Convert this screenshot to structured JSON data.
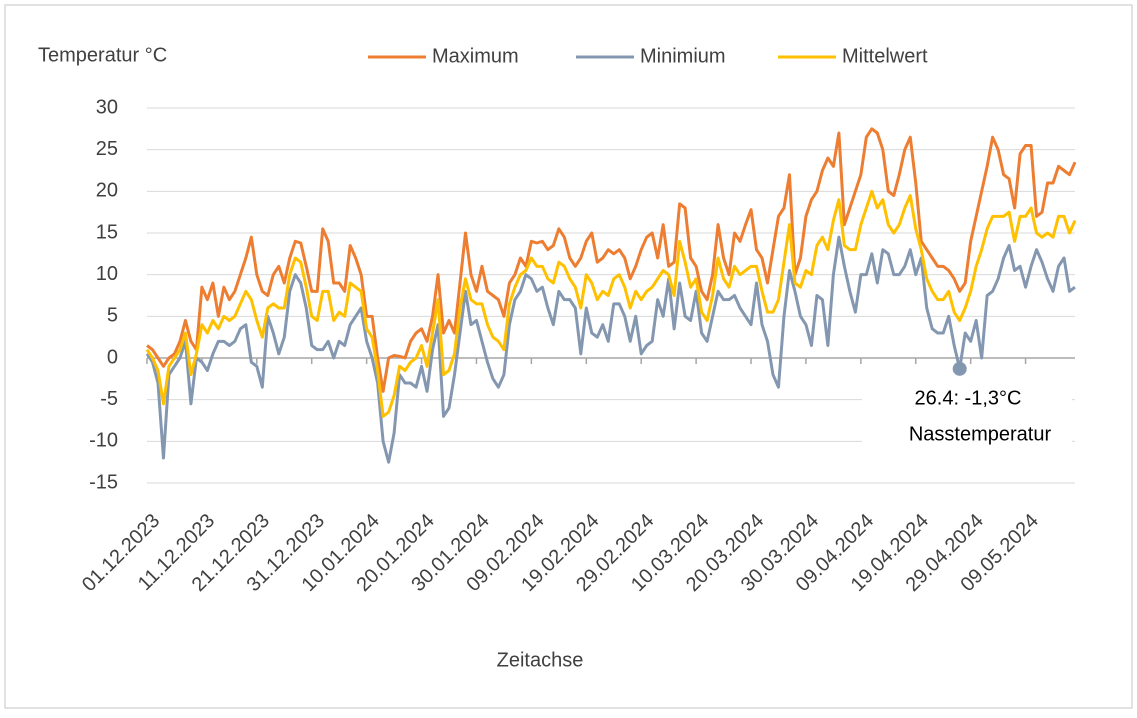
{
  "chart_data": {
    "type": "line",
    "title": "Temperatur °C",
    "x_label": "Zeitachse",
    "categories": [
      "01.12.2023",
      null,
      null,
      null,
      null,
      null,
      null,
      null,
      null,
      null,
      "11.12.2023",
      null,
      null,
      null,
      null,
      null,
      null,
      null,
      null,
      null,
      "21.12.2023",
      null,
      null,
      null,
      null,
      null,
      null,
      null,
      null,
      null,
      "31.12.2023",
      null,
      null,
      null,
      null,
      null,
      null,
      null,
      null,
      null,
      "10.01.2024",
      null,
      null,
      null,
      null,
      null,
      null,
      null,
      null,
      null,
      "20.01.2024",
      null,
      null,
      null,
      null,
      null,
      null,
      null,
      null,
      null,
      "30.01.2024",
      null,
      null,
      null,
      null,
      null,
      null,
      null,
      null,
      null,
      "09.02.2024",
      null,
      null,
      null,
      null,
      null,
      null,
      null,
      null,
      null,
      "19.02.2024",
      null,
      null,
      null,
      null,
      null,
      null,
      null,
      null,
      null,
      "29.02.2024",
      null,
      null,
      null,
      null,
      null,
      null,
      null,
      null,
      null,
      "10.03.2024",
      null,
      null,
      null,
      null,
      null,
      null,
      null,
      null,
      null,
      "20.03.2024",
      null,
      null,
      null,
      null,
      null,
      null,
      null,
      null,
      null,
      "30.03.2024",
      null,
      null,
      null,
      null,
      null,
      null,
      null,
      null,
      null,
      "09.04.2024",
      null,
      null,
      null,
      null,
      null,
      null,
      null,
      null,
      null,
      "19.04.2024",
      null,
      null,
      null,
      null,
      null,
      null,
      null,
      null,
      null,
      "29.04.2024",
      null,
      null,
      null,
      null,
      null,
      null,
      null,
      null,
      null,
      "09.05.2024",
      null,
      null,
      null,
      null,
      null,
      null,
      null,
      null,
      null
    ],
    "series": [
      {
        "name": "Maximum",
        "color": "#ed7d31",
        "values": [
          1.5,
          1,
          0,
          -1,
          0,
          0.5,
          2,
          4.5,
          2,
          1,
          8.5,
          7,
          9,
          5,
          8.5,
          7,
          8,
          10,
          12,
          14.5,
          10,
          8,
          7.5,
          10,
          11,
          9,
          12,
          14,
          13.8,
          11,
          8,
          8,
          15.5,
          14,
          9,
          9,
          8,
          13.5,
          12,
          10,
          5,
          5,
          0,
          -4,
          0,
          0.3,
          0.2,
          0,
          2,
          3,
          3.5,
          2,
          5,
          10,
          3,
          4.5,
          3,
          9,
          15,
          10,
          8,
          11,
          8,
          7.5,
          7,
          5,
          9,
          10,
          12,
          11,
          14,
          13.8,
          14,
          13,
          13.5,
          15.5,
          14.5,
          12,
          11,
          12,
          14,
          15,
          11.5,
          12,
          13,
          12.5,
          13,
          12,
          9.5,
          11,
          13,
          14.5,
          15,
          12,
          16,
          11,
          11.5,
          18.5,
          18,
          12,
          11,
          8,
          7,
          10,
          16,
          12,
          10,
          15,
          14,
          16,
          17.8,
          13,
          12,
          9,
          13,
          17,
          18,
          22,
          10,
          12,
          17,
          19,
          20,
          22.5,
          24,
          23,
          27,
          16,
          18,
          20,
          22,
          26.5,
          27.5,
          27,
          25,
          20,
          19.5,
          22,
          25,
          26.5,
          21,
          14,
          13,
          12,
          11,
          11,
          10.5,
          9.5,
          8,
          9,
          14,
          17,
          20,
          23,
          26.5,
          25,
          22,
          21.5,
          18,
          24.5,
          25.5,
          25.5,
          17,
          17.5,
          21,
          21,
          23,
          22.5,
          22,
          23.5
        ]
      },
      {
        "name": "Minimium",
        "color": "#8497b0",
        "values": [
          0.5,
          -0.5,
          -3,
          -12,
          -2,
          -1,
          0,
          2,
          -5.5,
          0,
          -0.5,
          -1.5,
          0.5,
          2,
          2,
          1.5,
          2,
          3.5,
          4,
          -0.5,
          -1,
          -3.5,
          5,
          3,
          0.5,
          2.5,
          8,
          10,
          9,
          6,
          1.5,
          1,
          1,
          2,
          0,
          2,
          1.5,
          4,
          5,
          6,
          2,
          0,
          -3,
          -10,
          -12.5,
          -9,
          -2,
          -3,
          -3,
          -3.5,
          -1,
          -4,
          1,
          4,
          -7,
          -6,
          -2,
          3,
          8,
          4,
          4.5,
          2,
          -0.5,
          -2.5,
          -3.5,
          -2,
          4,
          7,
          8,
          10,
          9.5,
          8,
          8.5,
          6,
          4,
          8,
          7,
          7,
          6,
          0.5,
          6,
          3,
          2.5,
          4,
          2,
          6.5,
          6.5,
          5,
          2,
          5,
          0.5,
          1.5,
          2,
          7,
          5,
          9.5,
          3.5,
          9,
          5,
          4.5,
          8,
          3,
          2,
          5,
          8,
          7,
          7,
          7.5,
          6,
          5,
          4,
          9,
          4,
          2,
          -2,
          -3.5,
          5,
          10.5,
          8,
          5,
          4,
          1.5,
          7.5,
          7,
          1.5,
          10,
          14.5,
          11,
          8,
          5.5,
          10,
          10,
          12.5,
          9,
          13,
          12.5,
          10,
          10,
          11,
          13,
          10,
          12,
          6,
          3.5,
          3,
          3,
          5,
          1.5,
          -1.3,
          3,
          2,
          4.5,
          0,
          7.5,
          8,
          9.5,
          12,
          13.5,
          10.5,
          11,
          8.5,
          11,
          13,
          11.5,
          9.5,
          8,
          11,
          12,
          8,
          8.5
        ]
      },
      {
        "name": "Mittelwert",
        "color": "#ffc000",
        "values": [
          1,
          0,
          -1.5,
          -5.5,
          -1,
          0,
          1,
          3,
          -2,
          0.5,
          4,
          3,
          4.5,
          3.5,
          5,
          4.5,
          5,
          6.5,
          8,
          7,
          4.5,
          2.5,
          6,
          6.5,
          6,
          6,
          10,
          12,
          11.5,
          8.5,
          5,
          4.5,
          8,
          8,
          4.5,
          5.5,
          5,
          9,
          8.5,
          8,
          3.5,
          2.5,
          -1.5,
          -7,
          -6.5,
          -4.5,
          -1,
          -1.5,
          -0.5,
          0,
          1.5,
          -1,
          3,
          7,
          -2,
          -1.5,
          0.5,
          6,
          9.5,
          7,
          6.5,
          6.5,
          4,
          2.5,
          2,
          1,
          6.5,
          8.5,
          10,
          10.5,
          12,
          11,
          11,
          9.5,
          9,
          11.5,
          11,
          9.5,
          8.5,
          6,
          10,
          9,
          7,
          8,
          7.5,
          9.5,
          10,
          8.5,
          6,
          8,
          7,
          8,
          8.5,
          9.5,
          10.5,
          10,
          7.5,
          14,
          11.5,
          8.5,
          9.5,
          5.5,
          4.5,
          7.5,
          12,
          9.5,
          8.5,
          11,
          10,
          10.5,
          11,
          11,
          8,
          5.5,
          5.5,
          7,
          11.5,
          16,
          9,
          8.5,
          10.5,
          10,
          13.5,
          14.5,
          13,
          16.5,
          19,
          13.5,
          13,
          13,
          16,
          18,
          20,
          18,
          19,
          16,
          15,
          16,
          18,
          19.5,
          15.5,
          13,
          9.5,
          8,
          7,
          7,
          8,
          5.5,
          4.5,
          6,
          8,
          11,
          13,
          15.5,
          17,
          17,
          17,
          17.5,
          14,
          17,
          17,
          18,
          15,
          14.5,
          15,
          14.5,
          17,
          17,
          15,
          16.5
        ]
      }
    ],
    "ylim": [
      -15,
      30
    ],
    "yticks": [
      -15,
      -10,
      -5,
      0,
      5,
      10,
      15,
      20,
      25,
      30
    ],
    "grid": true,
    "legend": "top",
    "annotation": {
      "series": "Minimium",
      "value": -1.3,
      "label": "26.4: -1,3°C",
      "text": "Nasstemperatur"
    }
  }
}
